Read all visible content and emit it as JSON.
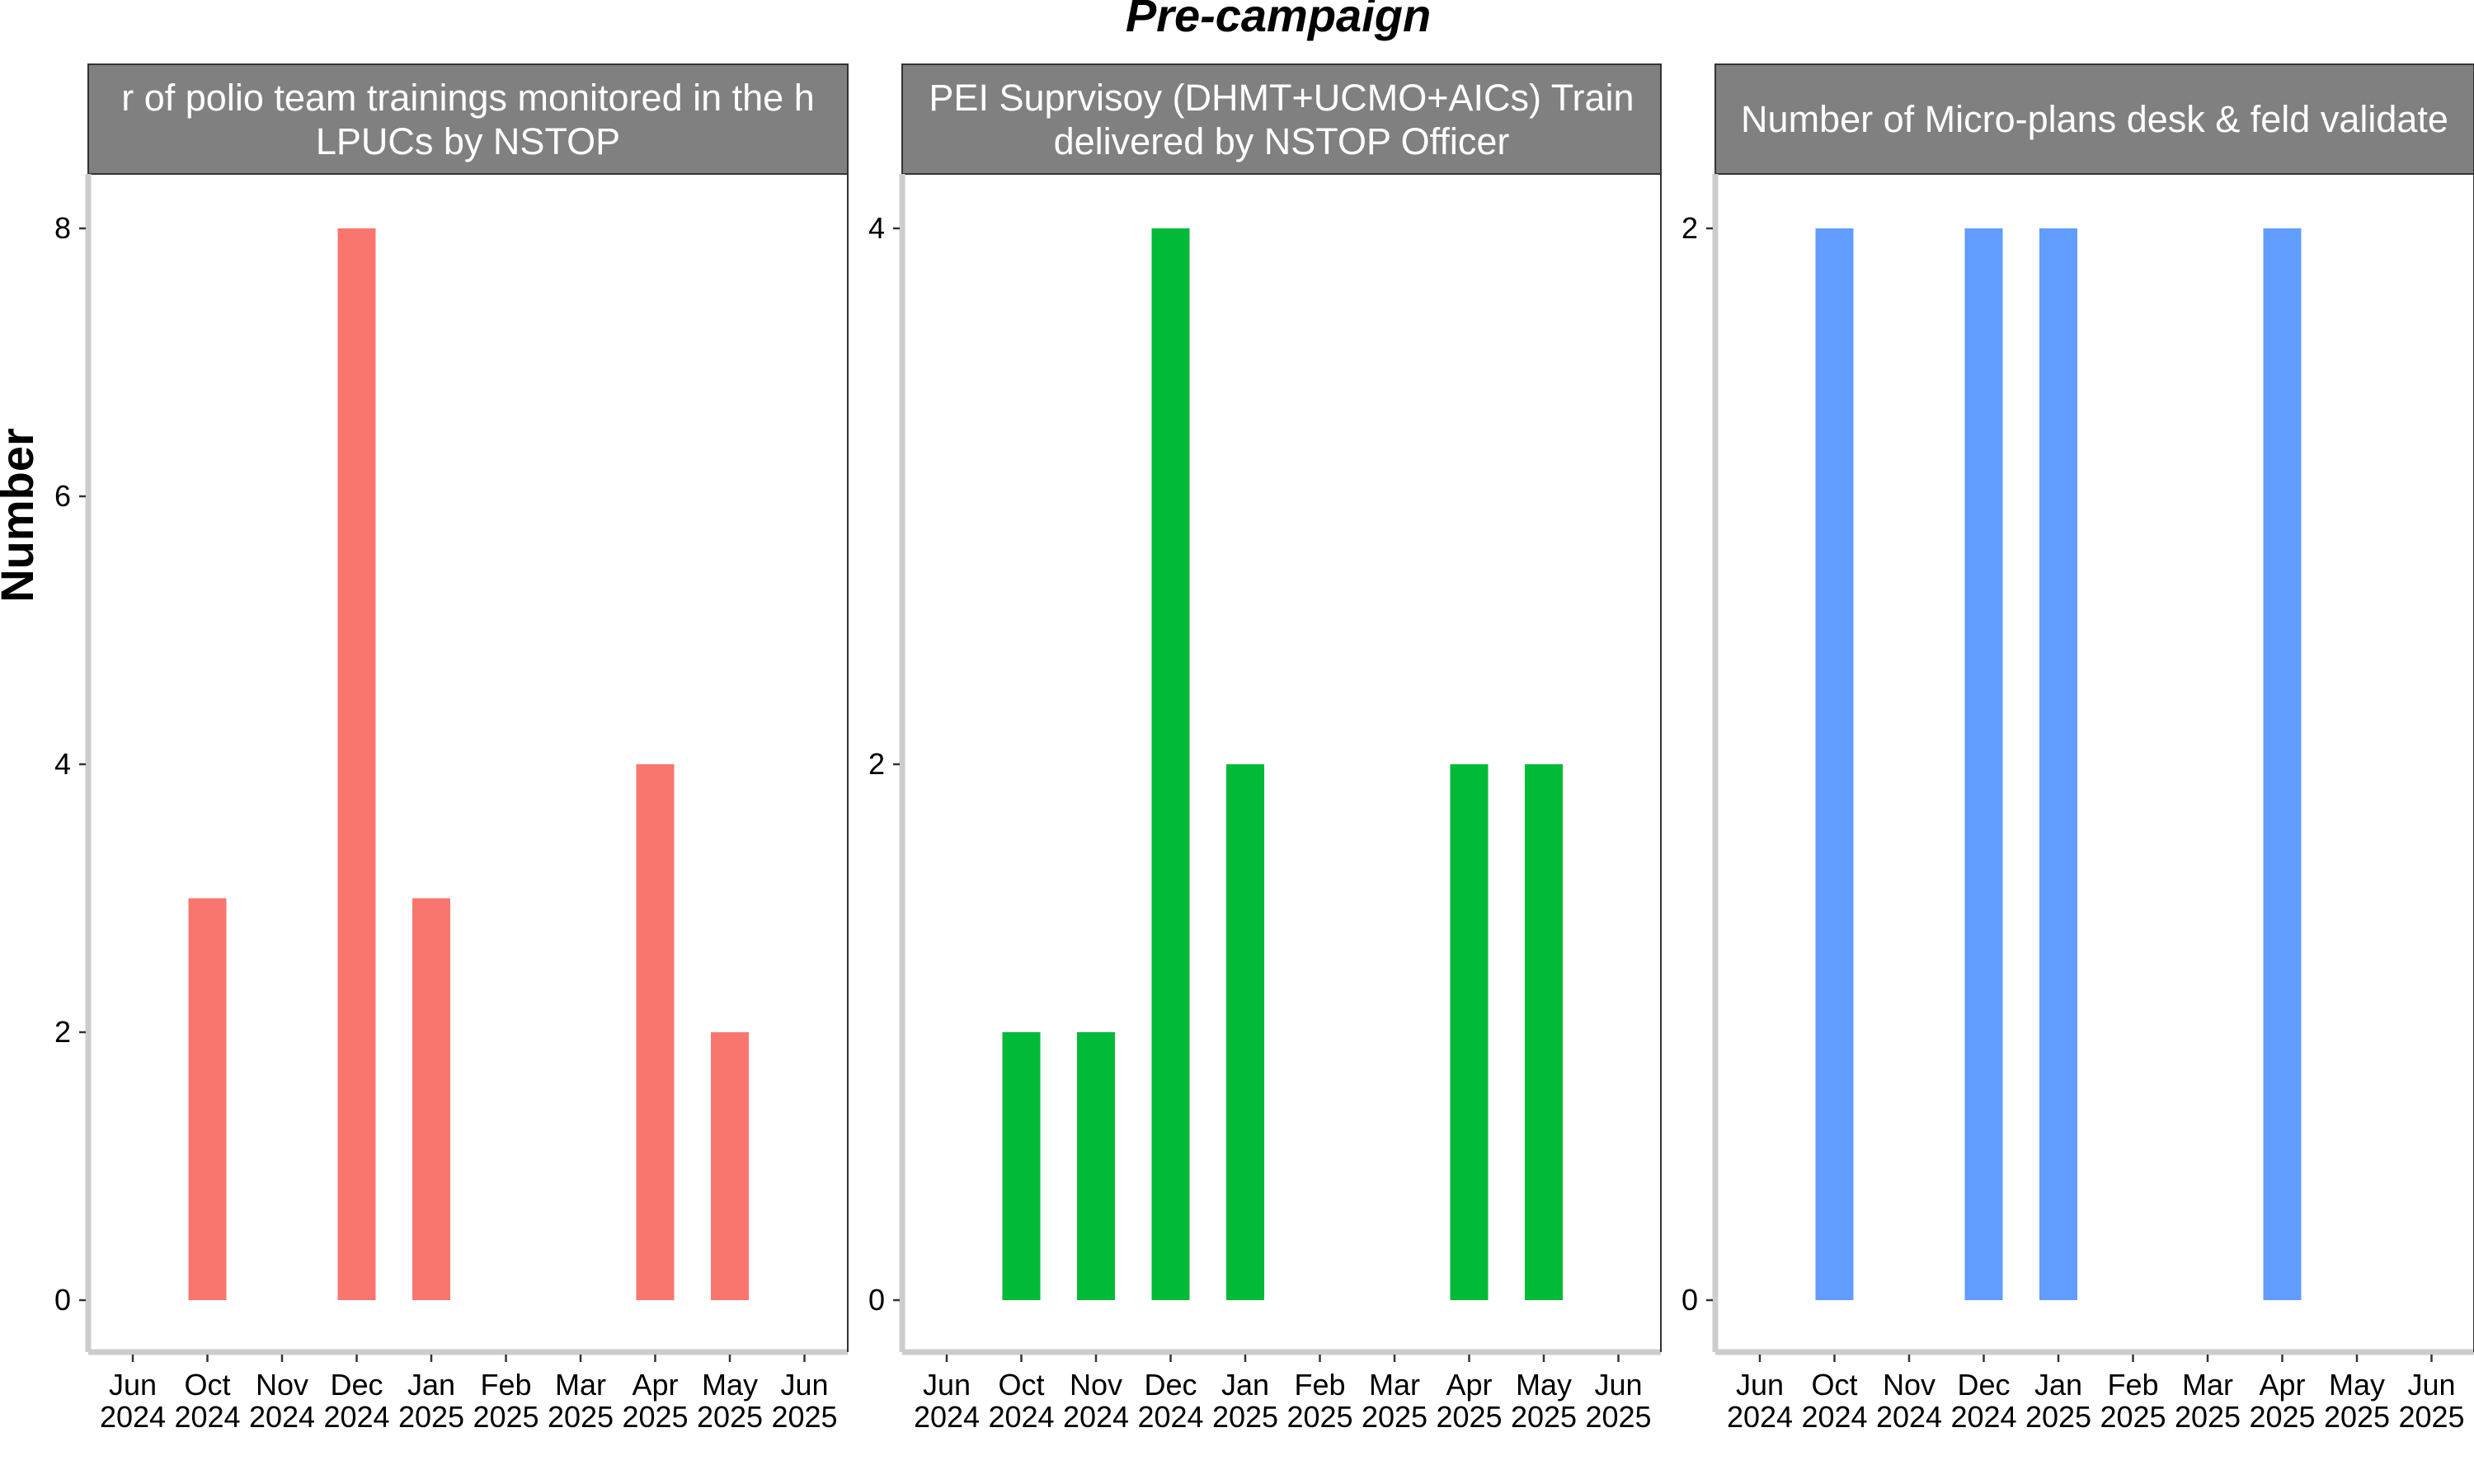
{
  "chart_data": {
    "type": "bar",
    "title": "Pre-campaign",
    "ylabel": "Number",
    "xlabel": "",
    "x_ticks": [
      {
        "month": "Jun",
        "year": "2024"
      },
      {
        "month": "Oct",
        "year": "2024"
      },
      {
        "month": "Nov",
        "year": "2024"
      },
      {
        "month": "Dec",
        "year": "2024"
      },
      {
        "month": "Jan",
        "year": "2025"
      },
      {
        "month": "Feb",
        "year": "2025"
      },
      {
        "month": "Mar",
        "year": "2025"
      },
      {
        "month": "Apr",
        "year": "2025"
      },
      {
        "month": "May",
        "year": "2025"
      },
      {
        "month": "Jun",
        "year": "2025"
      }
    ],
    "grid": false,
    "legend": "none",
    "panels": [
      {
        "strip_lines": [
          "r of polio team trainings monitored in the h",
          "LPUCs by NSTOP"
        ],
        "color": "#F8766D",
        "ylim": [
          0,
          8
        ],
        "y_ticks": [
          0,
          2,
          4,
          6,
          8
        ],
        "categories": [
          "Oct 2024",
          "Dec 2024",
          "Jan 2025",
          "Apr 2025",
          "May 2025"
        ],
        "values": [
          3,
          8,
          3,
          4,
          2
        ]
      },
      {
        "strip_lines": [
          "PEI Suprvisoy (DHMT+UCMO+AICs) Train",
          "delivered by NSTOP Officer"
        ],
        "color": "#00BA38",
        "ylim": [
          0,
          4
        ],
        "y_ticks": [
          0,
          2,
          4
        ],
        "categories": [
          "Oct 2024",
          "Nov 2024",
          "Dec 2024",
          "Jan 2025",
          "Apr 2025",
          "May 2025"
        ],
        "values": [
          1,
          1,
          4,
          2,
          2,
          2
        ]
      },
      {
        "strip_lines": [
          "Number of Micro-plans desk & feld validate"
        ],
        "color": "#619CFF",
        "ylim": [
          0,
          2
        ],
        "y_ticks": [
          0,
          2
        ],
        "categories": [
          "Oct 2024",
          "Dec 2024",
          "Jan 2025",
          "Apr 2025"
        ],
        "values": [
          2,
          2,
          2,
          2
        ]
      }
    ]
  }
}
